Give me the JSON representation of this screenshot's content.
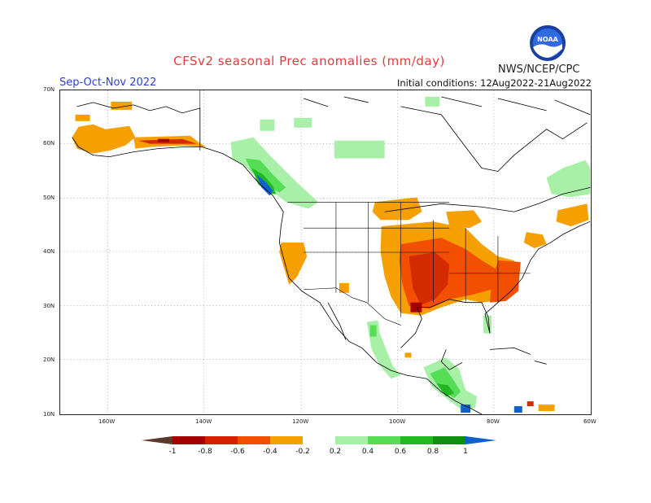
{
  "header": {
    "title": "CFSv2 seasonal Prec anomalies (mm/day)",
    "agency": "NWS/NCEP/CPC",
    "season": "Sep-Oct-Nov 2022",
    "initial_conditions": "Initial conditions: 12Aug2022-21Aug2022",
    "logo_text": "NOAA"
  },
  "axes": {
    "lat_labels": [
      "70N",
      "60N",
      "50N",
      "40N",
      "30N",
      "20N",
      "10N"
    ],
    "lon_labels": [
      "160W",
      "140W",
      "120W",
      "100W",
      "80W",
      "60W"
    ]
  },
  "legend": {
    "labels": [
      "-1",
      "-0.8",
      "-0.6",
      "-0.4",
      "-0.2",
      "0.2",
      "0.4",
      "0.6",
      "0.8",
      "1"
    ],
    "colors": [
      "#5a3a2a",
      "#a50000",
      "#d62000",
      "#f25000",
      "#f5a000",
      "#ffffff",
      "#a8f0a8",
      "#55dd55",
      "#22b822",
      "#109010",
      "#1060d0"
    ]
  },
  "colors": {
    "title": "#e03c3c",
    "season": "#2b3fd6",
    "dry_strong": "#d42a00",
    "dry_mid": "#f25000",
    "dry_weak": "#f5a000",
    "wet_weak": "#a8f0a8",
    "wet_mid": "#55dd55",
    "wet_strong": "#22b822",
    "wet_max": "#1060d0"
  }
}
